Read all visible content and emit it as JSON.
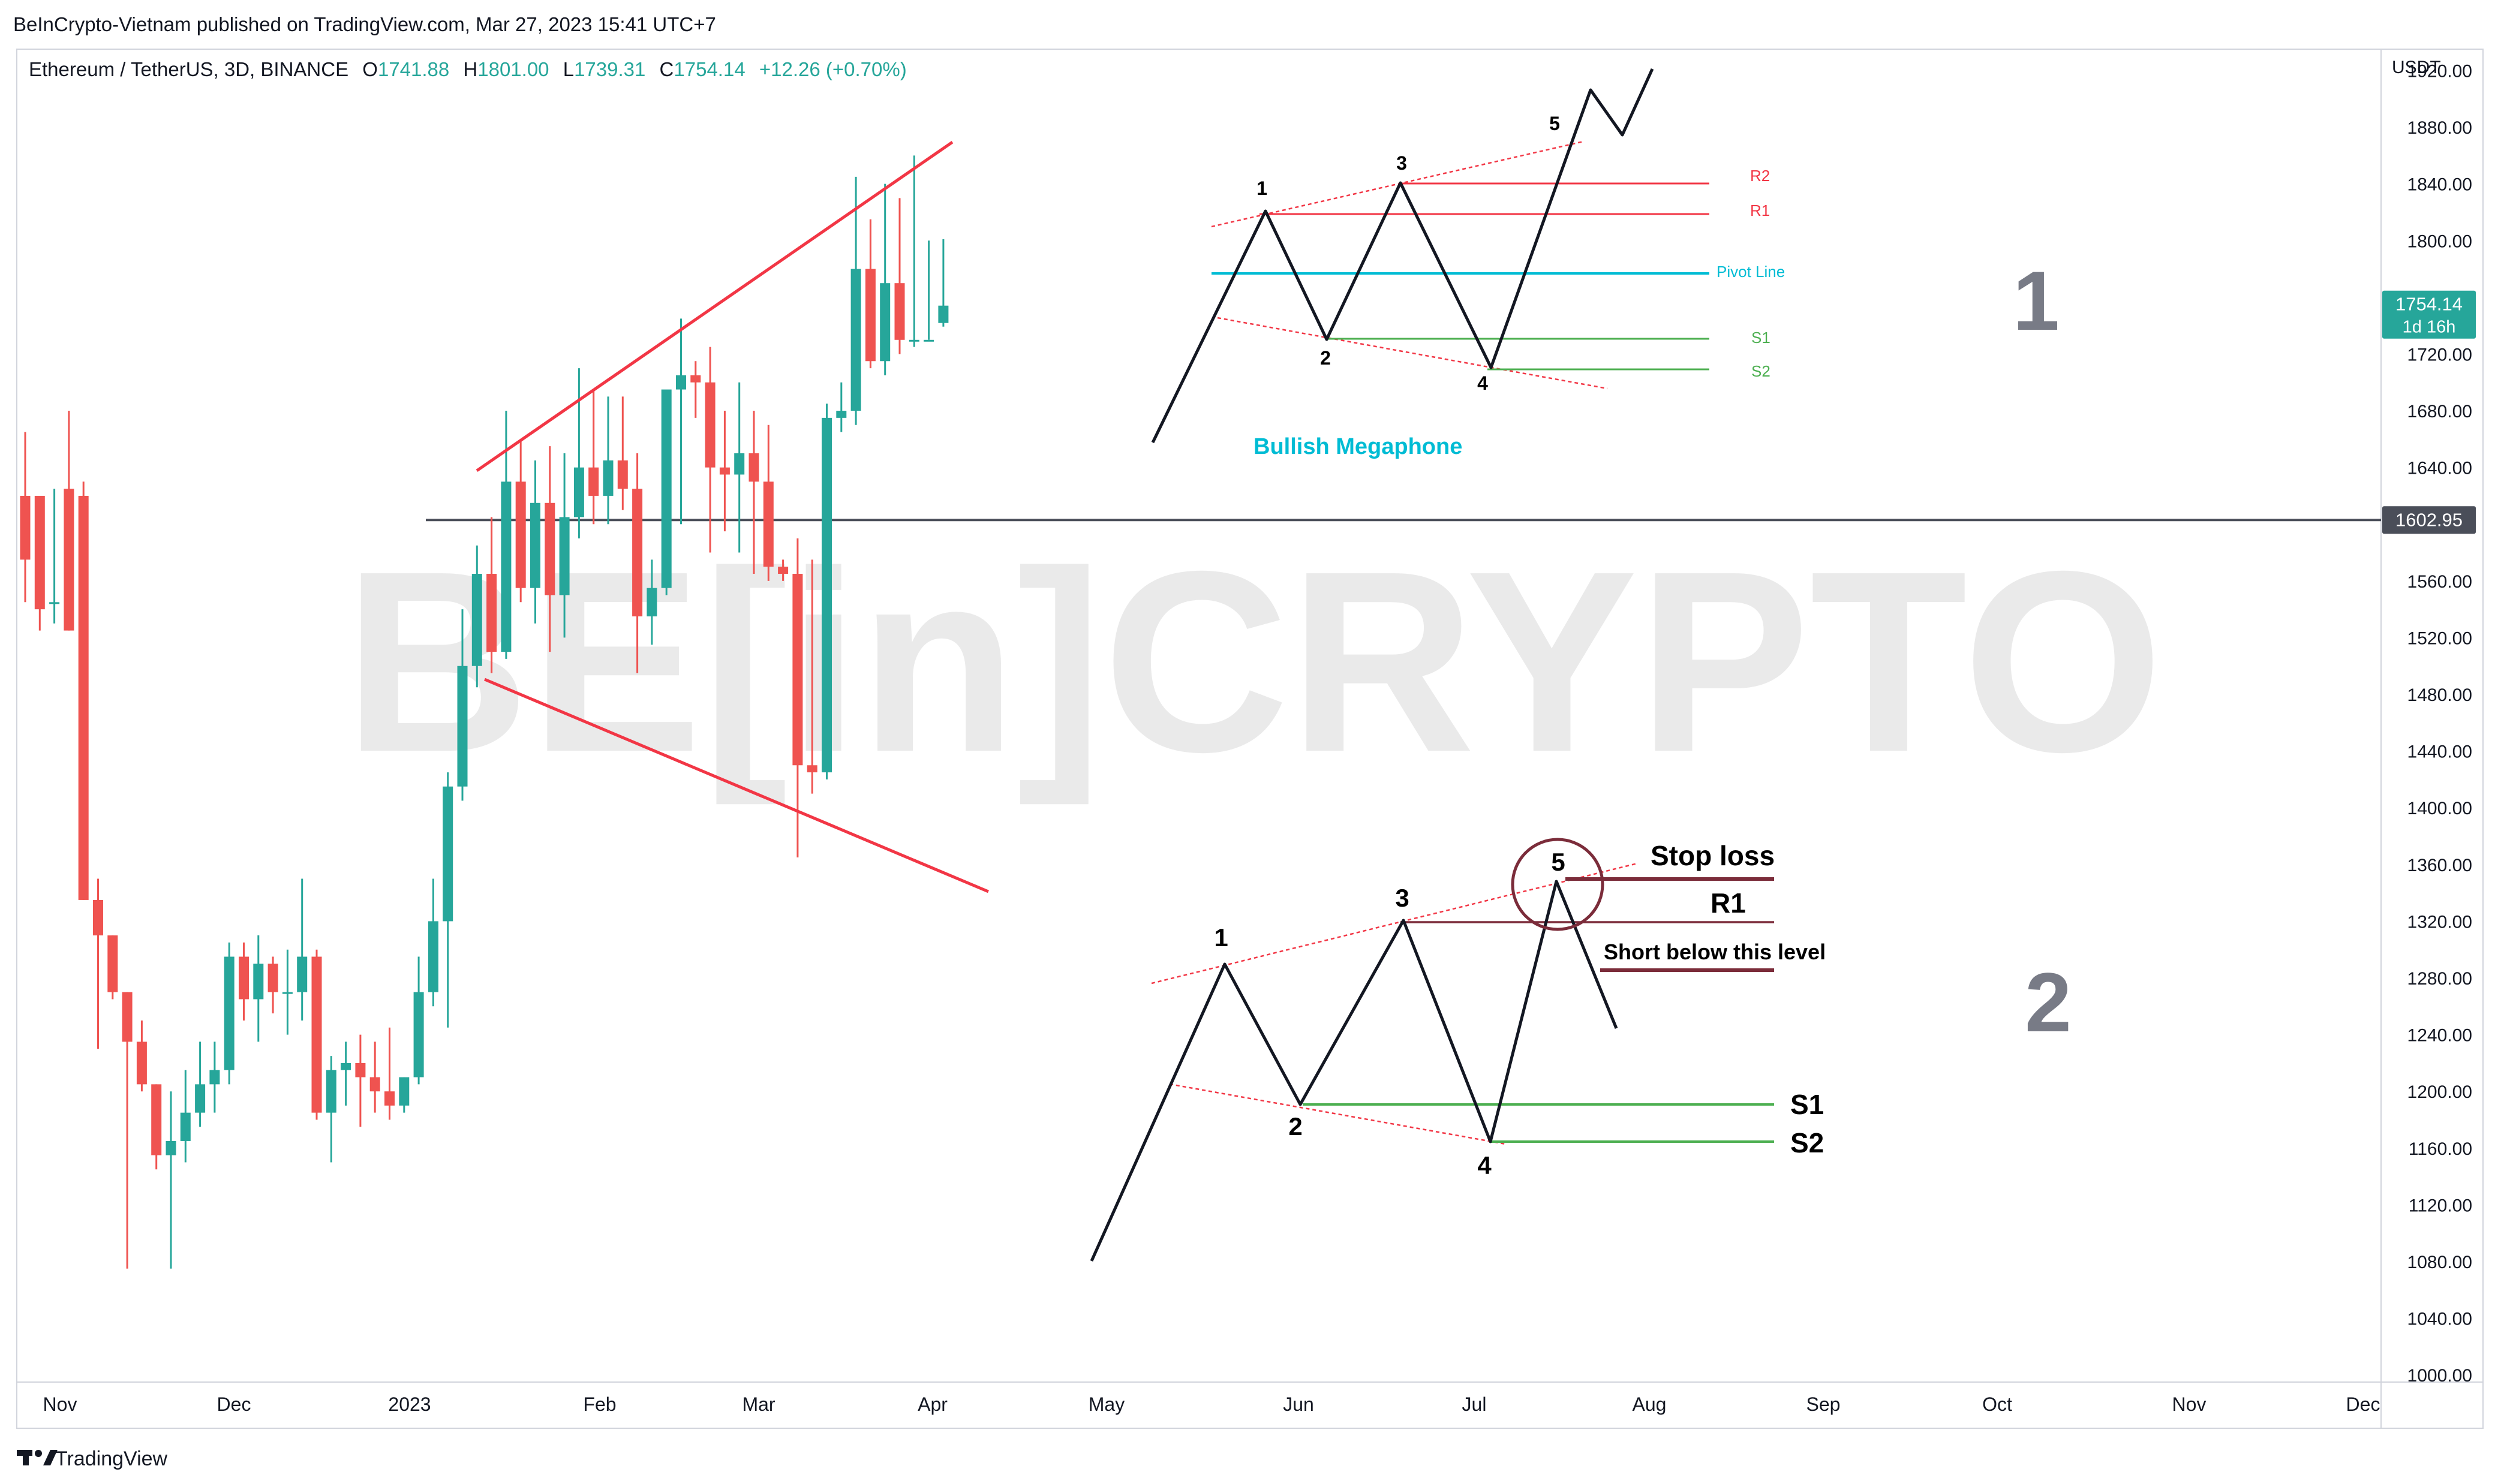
{
  "publisher_line": "BeInCrypto-Vietnam published on TradingView.com, Mar 27, 2023 15:41 UTC+7",
  "symbol": {
    "name": "Ethereum / TetherUS, 3D, BINANCE",
    "o_label": "O",
    "o": "1741.88",
    "h_label": "H",
    "h": "1801.00",
    "l_label": "L",
    "l": "1739.31",
    "c_label": "C",
    "c": "1754.14",
    "change": "+12.26 (+0.70%)"
  },
  "currency": "USDT",
  "watermark": "BE[in]CRYPTO",
  "footer_brand": "TradingView",
  "colors": {
    "up": "#26a69a",
    "down": "#ef5350",
    "trend": "#f23645",
    "pivot": "#00bcd4",
    "support": "#4caf50",
    "resist": "#f23645",
    "hline": "#4a4e59",
    "diagram": "#131722",
    "stoploss": "#7b2c3a",
    "panel_num": "#787b86"
  },
  "chart_data": {
    "type": "candlestick",
    "x_tick_labels": [
      "Nov",
      "Dec",
      "2023",
      "Feb",
      "Mar",
      "Apr",
      "May",
      "Jun",
      "Jul",
      "Aug",
      "Sep",
      "Oct",
      "Nov",
      "Dec"
    ],
    "y_ticks": [
      1000,
      1040,
      1080,
      1120,
      1160,
      1200,
      1240,
      1280,
      1320,
      1360,
      1400,
      1440,
      1480,
      1520,
      1560,
      1640,
      1680,
      1720,
      1800,
      1840,
      1880,
      1920
    ],
    "ylim": [
      995,
      1935
    ],
    "price_labels": [
      {
        "value": 1754.14,
        "text": "1754.14",
        "sub": "1d 16h",
        "color": "#26a69a"
      },
      {
        "value": 1602.95,
        "text": "1602.95",
        "color": "#4a4e59"
      }
    ],
    "horizontal_line": 1602.95,
    "candles": [
      [
        1620,
        1665,
        1575,
        1545
      ],
      [
        1620,
        1620,
        1540,
        1525
      ],
      [
        1545,
        1625,
        1545,
        1530
      ],
      [
        1625,
        1680,
        1525,
        1525
      ],
      [
        1620,
        1630,
        1335,
        1335
      ],
      [
        1335,
        1350,
        1310,
        1230
      ],
      [
        1310,
        1310,
        1270,
        1265
      ],
      [
        1270,
        1270,
        1235,
        1075
      ],
      [
        1235,
        1250,
        1205,
        1200
      ],
      [
        1205,
        1205,
        1155,
        1145
      ],
      [
        1155,
        1200,
        1165,
        1075
      ],
      [
        1165,
        1215,
        1185,
        1150
      ],
      [
        1185,
        1235,
        1205,
        1175
      ],
      [
        1205,
        1235,
        1215,
        1185
      ],
      [
        1215,
        1305,
        1295,
        1205
      ],
      [
        1295,
        1305,
        1265,
        1250
      ],
      [
        1265,
        1310,
        1290,
        1235
      ],
      [
        1290,
        1295,
        1270,
        1255
      ],
      [
        1270,
        1300,
        1270,
        1240
      ],
      [
        1270,
        1350,
        1295,
        1250
      ],
      [
        1295,
        1300,
        1185,
        1180
      ],
      [
        1185,
        1225,
        1215,
        1150
      ],
      [
        1215,
        1235,
        1220,
        1190
      ],
      [
        1220,
        1240,
        1210,
        1175
      ],
      [
        1210,
        1235,
        1200,
        1185
      ],
      [
        1200,
        1245,
        1190,
        1180
      ],
      [
        1190,
        1210,
        1210,
        1185
      ],
      [
        1210,
        1295,
        1270,
        1205
      ],
      [
        1270,
        1350,
        1320,
        1260
      ],
      [
        1320,
        1425,
        1415,
        1245
      ],
      [
        1415,
        1540,
        1500,
        1405
      ],
      [
        1500,
        1585,
        1565,
        1485
      ],
      [
        1565,
        1605,
        1510,
        1495
      ],
      [
        1510,
        1680,
        1630,
        1505
      ],
      [
        1630,
        1660,
        1555,
        1545
      ],
      [
        1555,
        1645,
        1615,
        1530
      ],
      [
        1615,
        1655,
        1550,
        1510
      ],
      [
        1550,
        1650,
        1605,
        1520
      ],
      [
        1605,
        1710,
        1640,
        1590
      ],
      [
        1640,
        1695,
        1620,
        1600
      ],
      [
        1620,
        1690,
        1645,
        1600
      ],
      [
        1645,
        1690,
        1625,
        1610
      ],
      [
        1625,
        1650,
        1535,
        1495
      ],
      [
        1535,
        1575,
        1555,
        1515
      ],
      [
        1555,
        1685,
        1695,
        1550
      ],
      [
        1695,
        1745,
        1705,
        1600
      ],
      [
        1705,
        1715,
        1700,
        1675
      ],
      [
        1700,
        1725,
        1640,
        1580
      ],
      [
        1640,
        1680,
        1635,
        1595
      ],
      [
        1635,
        1700,
        1650,
        1580
      ],
      [
        1650,
        1680,
        1630,
        1565
      ],
      [
        1630,
        1670,
        1570,
        1560
      ],
      [
        1570,
        1575,
        1565,
        1560
      ],
      [
        1565,
        1590,
        1430,
        1365
      ],
      [
        1430,
        1575,
        1425,
        1410
      ],
      [
        1425,
        1685,
        1675,
        1420
      ],
      [
        1675,
        1700,
        1680,
        1665
      ],
      [
        1680,
        1845,
        1780,
        1670
      ],
      [
        1780,
        1815,
        1715,
        1710
      ],
      [
        1715,
        1840,
        1770,
        1705
      ],
      [
        1770,
        1830,
        1730,
        1720
      ],
      [
        1730,
        1860,
        1730,
        1725
      ],
      [
        1730,
        1800,
        1730,
        1730
      ],
      [
        1741.88,
        1801,
        1754.14,
        1739.31
      ]
    ],
    "annotations": {
      "top_labels": {
        "p1": "1",
        "p2": "2",
        "p3": "3",
        "p4": "4",
        "p5": "5",
        "r2": "R2",
        "r1": "R1",
        "pivot": "Pivot Line",
        "s1": "S1",
        "s2": "S2",
        "caption": "Bullish Megaphone",
        "panel": "1"
      },
      "bottom_labels": {
        "p1": "1",
        "p2": "2",
        "p3": "3",
        "p4": "4",
        "p5": "5",
        "stop": "Stop loss",
        "r1": "R1",
        "short": "Short below this level",
        "s1": "S1",
        "s2": "S2",
        "panel": "2"
      }
    }
  }
}
